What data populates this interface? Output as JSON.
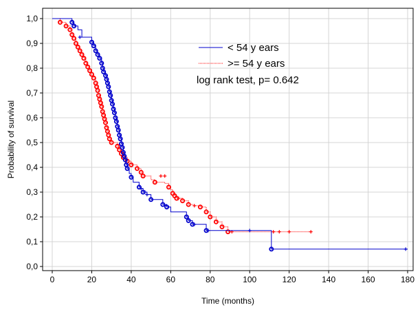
{
  "chart_data": {
    "type": "line",
    "xlabel": "Time (months)",
    "ylabel": "Probability of survival",
    "xlim": [
      0,
      180
    ],
    "ylim": [
      0.0,
      1.0
    ],
    "x_ticks": [
      0,
      20,
      40,
      60,
      80,
      100,
      120,
      140,
      160,
      180
    ],
    "y_ticks": [
      "0,0",
      "0,1",
      "0,2",
      "0,3",
      "0,4",
      "0,5",
      "0,6",
      "0,7",
      "0,8",
      "0,9",
      "1,0"
    ],
    "y_tick_values": [
      0,
      0.1,
      0.2,
      0.3,
      0.4,
      0.5,
      0.6,
      0.7,
      0.8,
      0.9,
      1.0
    ],
    "grid": true,
    "legend_position": "top-right",
    "annotation": "log rank test, p= 0.642",
    "series": [
      {
        "name": "< 54 y ears",
        "color": "#0000cc",
        "line_style": "solid",
        "steps": [
          [
            0,
            1.0
          ],
          [
            10,
            0.985
          ],
          [
            11,
            0.97
          ],
          [
            13,
            0.955
          ],
          [
            15,
            0.925
          ],
          [
            20,
            0.905
          ],
          [
            21,
            0.89
          ],
          [
            22,
            0.87
          ],
          [
            23,
            0.855
          ],
          [
            24,
            0.84
          ],
          [
            25,
            0.82
          ],
          [
            25.5,
            0.8
          ],
          [
            26,
            0.785
          ],
          [
            27,
            0.77
          ],
          [
            27.5,
            0.755
          ],
          [
            28,
            0.74
          ],
          [
            28.5,
            0.725
          ],
          [
            29,
            0.705
          ],
          [
            29.5,
            0.69
          ],
          [
            30,
            0.67
          ],
          [
            30.5,
            0.655
          ],
          [
            31,
            0.635
          ],
          [
            31.5,
            0.62
          ],
          [
            32,
            0.6
          ],
          [
            32.5,
            0.585
          ],
          [
            33,
            0.565
          ],
          [
            33.5,
            0.55
          ],
          [
            34,
            0.53
          ],
          [
            34.5,
            0.515
          ],
          [
            35,
            0.495
          ],
          [
            35.5,
            0.48
          ],
          [
            36,
            0.46
          ],
          [
            36.5,
            0.445
          ],
          [
            37,
            0.43
          ],
          [
            37.5,
            0.41
          ],
          [
            38,
            0.395
          ],
          [
            39,
            0.375
          ],
          [
            40,
            0.36
          ],
          [
            41,
            0.34
          ],
          [
            44,
            0.32
          ],
          [
            45,
            0.315
          ],
          [
            46,
            0.3
          ],
          [
            48,
            0.29
          ],
          [
            50,
            0.27
          ],
          [
            56,
            0.25
          ],
          [
            58,
            0.24
          ],
          [
            60,
            0.22
          ],
          [
            68,
            0.2
          ],
          [
            69,
            0.185
          ],
          [
            71,
            0.17
          ],
          [
            78,
            0.145
          ],
          [
            111,
            0.07
          ],
          [
            180,
            0.07
          ]
        ],
        "events": [
          [
            10,
            0.985
          ],
          [
            11,
            0.97
          ],
          [
            20,
            0.905
          ],
          [
            21,
            0.89
          ],
          [
            22,
            0.87
          ],
          [
            23,
            0.855
          ],
          [
            24,
            0.84
          ],
          [
            25,
            0.82
          ],
          [
            25.5,
            0.8
          ],
          [
            26,
            0.785
          ],
          [
            27,
            0.77
          ],
          [
            27.5,
            0.755
          ],
          [
            28,
            0.74
          ],
          [
            28.5,
            0.725
          ],
          [
            29,
            0.705
          ],
          [
            29.5,
            0.69
          ],
          [
            30,
            0.67
          ],
          [
            30.5,
            0.655
          ],
          [
            31,
            0.635
          ],
          [
            31.5,
            0.62
          ],
          [
            32,
            0.6
          ],
          [
            32.5,
            0.585
          ],
          [
            33,
            0.565
          ],
          [
            33.5,
            0.55
          ],
          [
            34,
            0.53
          ],
          [
            34.5,
            0.515
          ],
          [
            35,
            0.495
          ],
          [
            35.5,
            0.48
          ],
          [
            36,
            0.46
          ],
          [
            36.5,
            0.445
          ],
          [
            37,
            0.43
          ],
          [
            37.5,
            0.41
          ],
          [
            38,
            0.395
          ],
          [
            40,
            0.36
          ],
          [
            44,
            0.32
          ],
          [
            46,
            0.3
          ],
          [
            50,
            0.27
          ],
          [
            56,
            0.25
          ],
          [
            58,
            0.24
          ],
          [
            68,
            0.2
          ],
          [
            69,
            0.185
          ],
          [
            71,
            0.17
          ],
          [
            78,
            0.145
          ],
          [
            111,
            0.07
          ]
        ],
        "censored": [
          [
            14,
            0.925
          ],
          [
            45,
            0.315
          ],
          [
            47,
            0.3
          ],
          [
            48,
            0.29
          ],
          [
            72,
            0.17
          ],
          [
            79,
            0.145
          ],
          [
            100,
            0.145
          ],
          [
            179,
            0.07
          ]
        ]
      },
      {
        "name": ">= 54 y ears",
        "color": "#ff0000",
        "line_style": "dotted",
        "steps": [
          [
            0,
            1.0
          ],
          [
            4,
            0.985
          ],
          [
            7,
            0.97
          ],
          [
            9,
            0.955
          ],
          [
            10,
            0.935
          ],
          [
            11,
            0.92
          ],
          [
            12,
            0.9
          ],
          [
            13,
            0.885
          ],
          [
            14,
            0.87
          ],
          [
            15,
            0.855
          ],
          [
            16,
            0.84
          ],
          [
            17,
            0.82
          ],
          [
            18,
            0.805
          ],
          [
            19,
            0.79
          ],
          [
            20,
            0.775
          ],
          [
            21,
            0.76
          ],
          [
            22,
            0.74
          ],
          [
            22.5,
            0.725
          ],
          [
            23,
            0.71
          ],
          [
            23.5,
            0.69
          ],
          [
            24,
            0.675
          ],
          [
            24.5,
            0.66
          ],
          [
            25,
            0.645
          ],
          [
            25.5,
            0.625
          ],
          [
            26,
            0.61
          ],
          [
            26.5,
            0.595
          ],
          [
            27,
            0.58
          ],
          [
            27.5,
            0.56
          ],
          [
            28,
            0.545
          ],
          [
            28.5,
            0.53
          ],
          [
            29,
            0.515
          ],
          [
            30,
            0.5
          ],
          [
            33,
            0.485
          ],
          [
            34,
            0.47
          ],
          [
            35,
            0.455
          ],
          [
            36,
            0.44
          ],
          [
            38,
            0.425
          ],
          [
            40,
            0.41
          ],
          [
            43,
            0.395
          ],
          [
            45,
            0.38
          ],
          [
            46,
            0.365
          ],
          [
            50,
            0.35
          ],
          [
            52,
            0.34
          ],
          [
            57,
            0.335
          ],
          [
            59,
            0.32
          ],
          [
            60,
            0.31
          ],
          [
            61,
            0.295
          ],
          [
            62,
            0.285
          ],
          [
            63,
            0.275
          ],
          [
            66,
            0.265
          ],
          [
            69,
            0.25
          ],
          [
            72,
            0.245
          ],
          [
            75,
            0.24
          ],
          [
            78,
            0.22
          ],
          [
            80,
            0.2
          ],
          [
            83,
            0.18
          ],
          [
            86,
            0.16
          ],
          [
            89,
            0.14
          ],
          [
            90,
            0.14
          ],
          [
            131,
            0.14
          ]
        ],
        "events": [
          [
            4,
            0.985
          ],
          [
            7,
            0.97
          ],
          [
            9,
            0.955
          ],
          [
            10,
            0.935
          ],
          [
            11,
            0.92
          ],
          [
            12,
            0.9
          ],
          [
            13,
            0.885
          ],
          [
            14,
            0.87
          ],
          [
            15,
            0.855
          ],
          [
            16,
            0.84
          ],
          [
            17,
            0.82
          ],
          [
            18,
            0.805
          ],
          [
            19,
            0.79
          ],
          [
            20,
            0.775
          ],
          [
            21,
            0.76
          ],
          [
            22,
            0.74
          ],
          [
            22.5,
            0.725
          ],
          [
            23,
            0.71
          ],
          [
            23.5,
            0.69
          ],
          [
            24,
            0.675
          ],
          [
            24.5,
            0.66
          ],
          [
            25,
            0.645
          ],
          [
            25.5,
            0.625
          ],
          [
            26,
            0.61
          ],
          [
            26.5,
            0.595
          ],
          [
            27,
            0.58
          ],
          [
            27.5,
            0.56
          ],
          [
            28,
            0.545
          ],
          [
            28.5,
            0.53
          ],
          [
            29,
            0.515
          ],
          [
            30,
            0.5
          ],
          [
            33,
            0.485
          ],
          [
            34,
            0.47
          ],
          [
            35,
            0.455
          ],
          [
            36,
            0.44
          ],
          [
            38,
            0.425
          ],
          [
            40,
            0.41
          ],
          [
            43,
            0.395
          ],
          [
            45,
            0.38
          ],
          [
            46,
            0.365
          ],
          [
            52,
            0.34
          ],
          [
            59,
            0.32
          ],
          [
            61,
            0.295
          ],
          [
            62,
            0.285
          ],
          [
            63,
            0.275
          ],
          [
            66,
            0.265
          ],
          [
            69,
            0.25
          ],
          [
            75,
            0.24
          ],
          [
            78,
            0.22
          ],
          [
            80,
            0.2
          ],
          [
            83,
            0.18
          ],
          [
            86,
            0.16
          ],
          [
            89,
            0.14
          ]
        ],
        "censored": [
          [
            55,
            0.365
          ],
          [
            57,
            0.365
          ],
          [
            64,
            0.275
          ],
          [
            72,
            0.245
          ],
          [
            91,
            0.14
          ],
          [
            112,
            0.14
          ],
          [
            115,
            0.14
          ],
          [
            120,
            0.14
          ],
          [
            131,
            0.14
          ]
        ]
      }
    ]
  }
}
